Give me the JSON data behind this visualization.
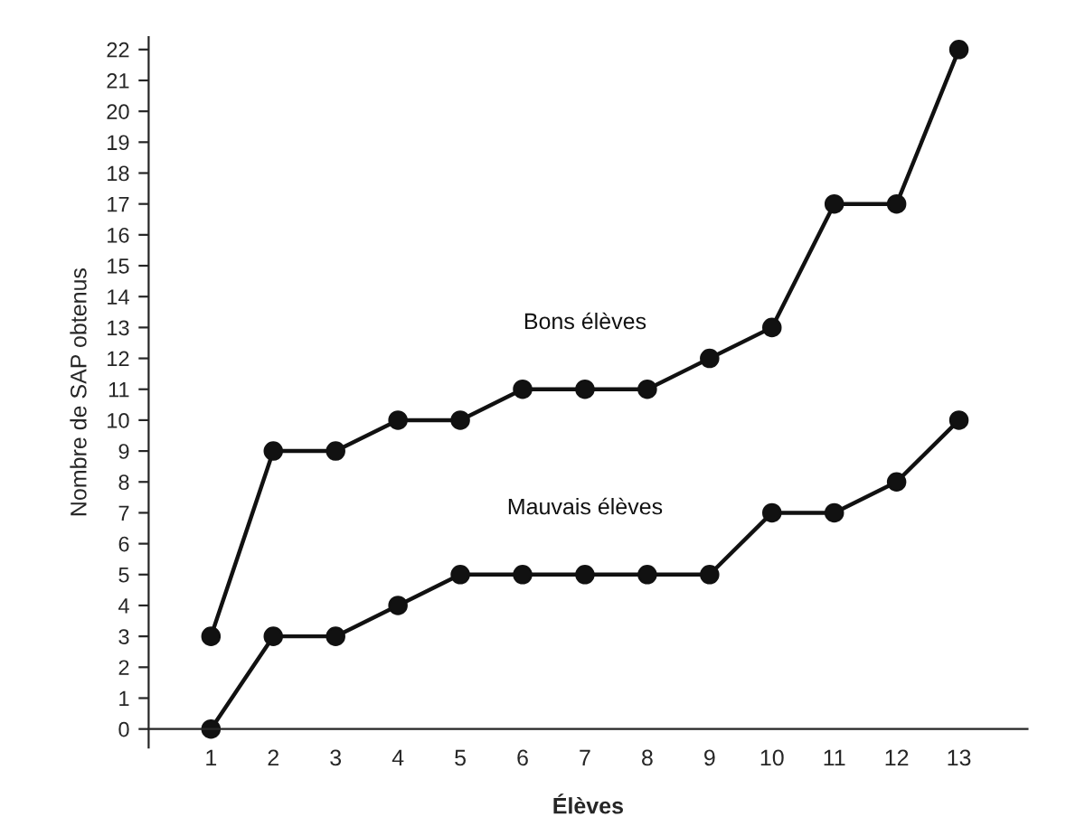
{
  "chart_data": {
    "type": "line",
    "xlabel": "Élèves",
    "ylabel": "Nombre de SAP obtenus",
    "x": [
      1,
      2,
      3,
      4,
      5,
      6,
      7,
      8,
      9,
      10,
      11,
      12,
      13
    ],
    "series": [
      {
        "name": "Bons élèves",
        "color": "#111111",
        "values": [
          3,
          9,
          9,
          10,
          10,
          11,
          11,
          11,
          12,
          13,
          17,
          17,
          22
        ]
      },
      {
        "name": "Mauvais élèves",
        "color": "#111111",
        "values": [
          0,
          3,
          3,
          4,
          5,
          5,
          5,
          5,
          5,
          7,
          7,
          8,
          10
        ]
      }
    ],
    "xlim": [
      0,
      14.1
    ],
    "ylim": [
      -0.6,
      22.4
    ],
    "xticks": [
      1,
      2,
      3,
      4,
      5,
      6,
      7,
      8,
      9,
      10,
      11,
      12,
      13
    ],
    "yticks": [
      0,
      1,
      2,
      3,
      4,
      5,
      6,
      7,
      8,
      9,
      10,
      11,
      12,
      13,
      14,
      15,
      16,
      17,
      18,
      19,
      20,
      21,
      22
    ],
    "marker": "circle",
    "line_style": "solid",
    "grid": false,
    "legend": false
  }
}
